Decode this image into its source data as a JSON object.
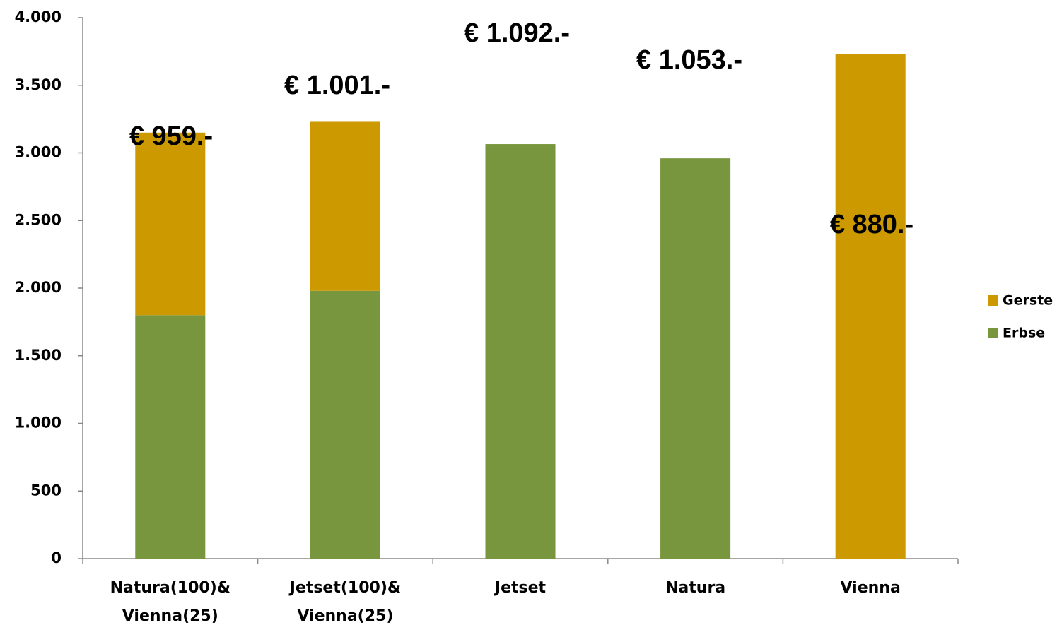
{
  "chart_data": {
    "type": "stacked_bar",
    "categories": [
      "Natura(100)&\nVienna(25)",
      "Jetset(100)&\nVienna(25)",
      "Jetset",
      "Natura",
      "Vienna"
    ],
    "series": [
      {
        "name": "Erbse",
        "color": "#77963d",
        "values": [
          1800,
          1980,
          3065,
          2960,
          0
        ]
      },
      {
        "name": "Gerste",
        "color": "#cc9900",
        "values": [
          1350,
          1250,
          0,
          0,
          3730
        ]
      }
    ],
    "annotations": [
      "€ 959.-",
      "€ 1.001.-",
      "€ 1.092.-",
      "€ 1.053.-",
      "€ 880.-"
    ],
    "ylim": [
      0,
      4000
    ],
    "yticks": [
      0,
      500,
      {
        "value": 1000,
        "label": "1.000"
      },
      {
        "value": 1500,
        "label": "1.500"
      },
      {
        "value": 2000,
        "label": "2.000"
      },
      {
        "value": 2500,
        "label": "2.500"
      },
      {
        "value": 3000,
        "label": "3.000"
      },
      {
        "value": 3500,
        "label": "3.500"
      },
      {
        "value": 4000,
        "label": "4.000"
      }
    ],
    "legend": "right",
    "grid": false
  }
}
